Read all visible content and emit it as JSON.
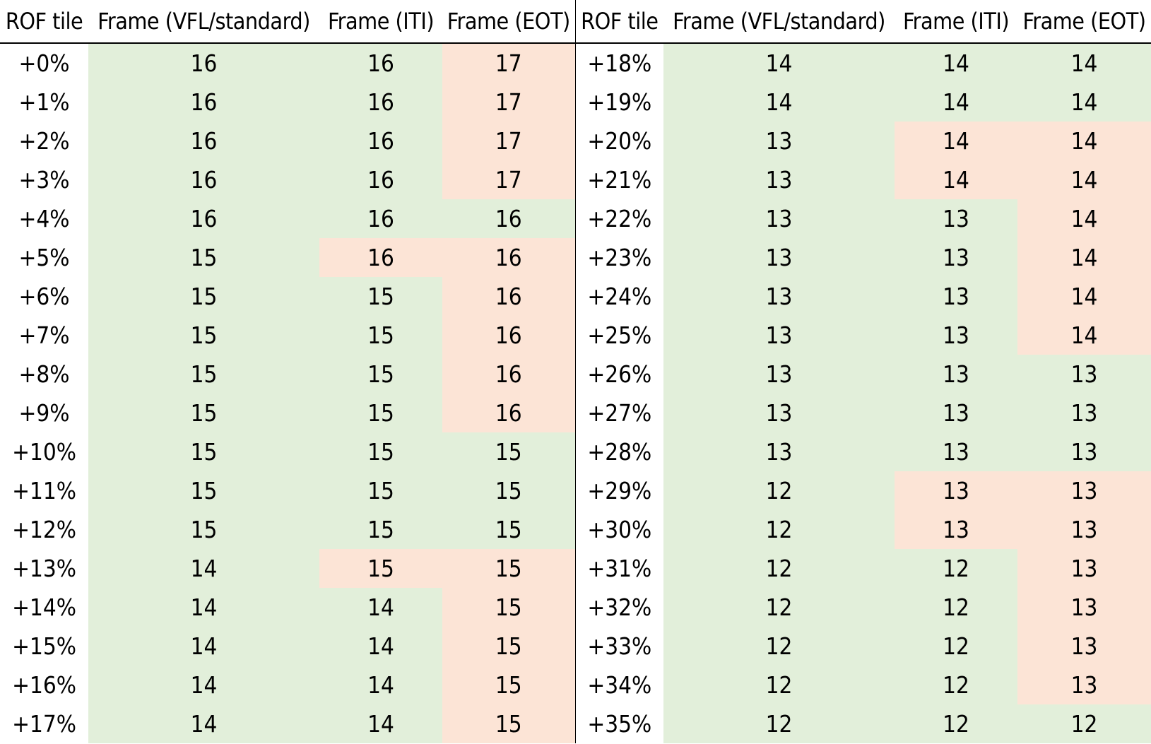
{
  "headers": [
    "ROF tile",
    "Frame (VFL/standard)",
    "Frame (ITI)",
    "Frame (EOT)",
    "ROF tile",
    "Frame (VFL/standard)",
    "Frame (ITI)",
    "Frame (EOT)"
  ],
  "colors": {
    "match": "#e2efda",
    "diff": "#fce4d6"
  },
  "left_rows": [
    {
      "rof": "+0%",
      "vfl": "16",
      "iti": "16",
      "eot": "17",
      "iti_state": "match",
      "eot_state": "diff"
    },
    {
      "rof": "+1%",
      "vfl": "16",
      "iti": "16",
      "eot": "17",
      "iti_state": "match",
      "eot_state": "diff"
    },
    {
      "rof": "+2%",
      "vfl": "16",
      "iti": "16",
      "eot": "17",
      "iti_state": "match",
      "eot_state": "diff"
    },
    {
      "rof": "+3%",
      "vfl": "16",
      "iti": "16",
      "eot": "17",
      "iti_state": "match",
      "eot_state": "diff"
    },
    {
      "rof": "+4%",
      "vfl": "16",
      "iti": "16",
      "eot": "16",
      "iti_state": "match",
      "eot_state": "match"
    },
    {
      "rof": "+5%",
      "vfl": "15",
      "iti": "16",
      "eot": "16",
      "iti_state": "diff",
      "eot_state": "diff"
    },
    {
      "rof": "+6%",
      "vfl": "15",
      "iti": "15",
      "eot": "16",
      "iti_state": "match",
      "eot_state": "diff"
    },
    {
      "rof": "+7%",
      "vfl": "15",
      "iti": "15",
      "eot": "16",
      "iti_state": "match",
      "eot_state": "diff"
    },
    {
      "rof": "+8%",
      "vfl": "15",
      "iti": "15",
      "eot": "16",
      "iti_state": "match",
      "eot_state": "diff"
    },
    {
      "rof": "+9%",
      "vfl": "15",
      "iti": "15",
      "eot": "16",
      "iti_state": "match",
      "eot_state": "diff"
    },
    {
      "rof": "+10%",
      "vfl": "15",
      "iti": "15",
      "eot": "15",
      "iti_state": "match",
      "eot_state": "match"
    },
    {
      "rof": "+11%",
      "vfl": "15",
      "iti": "15",
      "eot": "15",
      "iti_state": "match",
      "eot_state": "match"
    },
    {
      "rof": "+12%",
      "vfl": "15",
      "iti": "15",
      "eot": "15",
      "iti_state": "match",
      "eot_state": "match"
    },
    {
      "rof": "+13%",
      "vfl": "14",
      "iti": "15",
      "eot": "15",
      "iti_state": "diff",
      "eot_state": "diff"
    },
    {
      "rof": "+14%",
      "vfl": "14",
      "iti": "14",
      "eot": "15",
      "iti_state": "match",
      "eot_state": "diff"
    },
    {
      "rof": "+15%",
      "vfl": "14",
      "iti": "14",
      "eot": "15",
      "iti_state": "match",
      "eot_state": "diff"
    },
    {
      "rof": "+16%",
      "vfl": "14",
      "iti": "14",
      "eot": "15",
      "iti_state": "match",
      "eot_state": "diff"
    },
    {
      "rof": "+17%",
      "vfl": "14",
      "iti": "14",
      "eot": "15",
      "iti_state": "match",
      "eot_state": "diff"
    }
  ],
  "right_rows": [
    {
      "rof": "+18%",
      "vfl": "14",
      "iti": "14",
      "eot": "14",
      "iti_state": "match",
      "eot_state": "match"
    },
    {
      "rof": "+19%",
      "vfl": "14",
      "iti": "14",
      "eot": "14",
      "iti_state": "match",
      "eot_state": "match"
    },
    {
      "rof": "+20%",
      "vfl": "13",
      "iti": "14",
      "eot": "14",
      "iti_state": "diff",
      "eot_state": "diff"
    },
    {
      "rof": "+21%",
      "vfl": "13",
      "iti": "14",
      "eot": "14",
      "iti_state": "diff",
      "eot_state": "diff"
    },
    {
      "rof": "+22%",
      "vfl": "13",
      "iti": "13",
      "eot": "14",
      "iti_state": "match",
      "eot_state": "diff"
    },
    {
      "rof": "+23%",
      "vfl": "13",
      "iti": "13",
      "eot": "14",
      "iti_state": "match",
      "eot_state": "diff"
    },
    {
      "rof": "+24%",
      "vfl": "13",
      "iti": "13",
      "eot": "14",
      "iti_state": "match",
      "eot_state": "diff"
    },
    {
      "rof": "+25%",
      "vfl": "13",
      "iti": "13",
      "eot": "14",
      "iti_state": "match",
      "eot_state": "diff"
    },
    {
      "rof": "+26%",
      "vfl": "13",
      "iti": "13",
      "eot": "13",
      "iti_state": "match",
      "eot_state": "match"
    },
    {
      "rof": "+27%",
      "vfl": "13",
      "iti": "13",
      "eot": "13",
      "iti_state": "match",
      "eot_state": "match"
    },
    {
      "rof": "+28%",
      "vfl": "13",
      "iti": "13",
      "eot": "13",
      "iti_state": "match",
      "eot_state": "match"
    },
    {
      "rof": "+29%",
      "vfl": "12",
      "iti": "13",
      "eot": "13",
      "iti_state": "diff",
      "eot_state": "diff"
    },
    {
      "rof": "+30%",
      "vfl": "12",
      "iti": "13",
      "eot": "13",
      "iti_state": "diff",
      "eot_state": "diff"
    },
    {
      "rof": "+31%",
      "vfl": "12",
      "iti": "12",
      "eot": "13",
      "iti_state": "match",
      "eot_state": "diff"
    },
    {
      "rof": "+32%",
      "vfl": "12",
      "iti": "12",
      "eot": "13",
      "iti_state": "match",
      "eot_state": "diff"
    },
    {
      "rof": "+33%",
      "vfl": "12",
      "iti": "12",
      "eot": "13",
      "iti_state": "match",
      "eot_state": "diff"
    },
    {
      "rof": "+34%",
      "vfl": "12",
      "iti": "12",
      "eot": "13",
      "iti_state": "match",
      "eot_state": "diff"
    },
    {
      "rof": "+35%",
      "vfl": "12",
      "iti": "12",
      "eot": "12",
      "iti_state": "match",
      "eot_state": "match"
    }
  ]
}
